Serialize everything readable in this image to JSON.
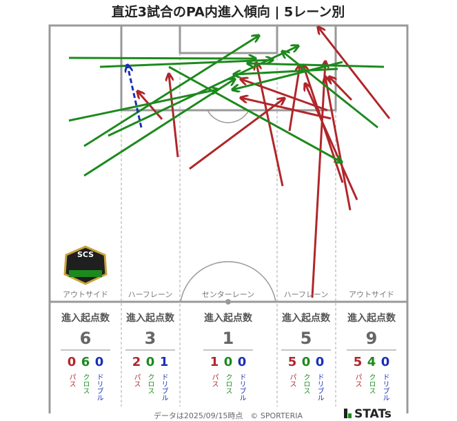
{
  "title": "直近3試合のPA内進入傾向 | 5レーン別",
  "badge": "SCS",
  "lanes": [
    {
      "name": "アウトサイド",
      "label": "進入起点数",
      "total": 6,
      "counts": [
        {
          "label": "パス",
          "value": 0
        },
        {
          "label": "クロス",
          "value": 6
        },
        {
          "label": "ドリブル",
          "value": 0
        }
      ]
    },
    {
      "name": "ハーフレーン",
      "label": "進入起点数",
      "total": 3,
      "counts": [
        {
          "label": "パス",
          "value": 2
        },
        {
          "label": "クロス",
          "value": 0
        },
        {
          "label": "ドリブル",
          "value": 1
        }
      ]
    },
    {
      "name": "センターレーン",
      "label": "進入起点数",
      "total": 1,
      "counts": [
        {
          "label": "パス",
          "value": 1
        },
        {
          "label": "クロス",
          "value": 0
        },
        {
          "label": "ドリブル",
          "value": 0
        }
      ]
    },
    {
      "name": "ハーフレーン",
      "label": "進入起点数",
      "total": 5,
      "counts": [
        {
          "label": "パス",
          "value": 5
        },
        {
          "label": "クロス",
          "value": 0
        },
        {
          "label": "ドリブル",
          "value": 0
        }
      ]
    },
    {
      "name": "アウトサイド",
      "label": "進入起点数",
      "total": 9,
      "counts": [
        {
          "label": "パス",
          "value": 5
        },
        {
          "label": "クロス",
          "value": 4
        },
        {
          "label": "ドリブル",
          "value": 0
        }
      ]
    }
  ],
  "footer": "データは2025/09/15時点　© SPORTERIA",
  "logo": "STATs"
}
